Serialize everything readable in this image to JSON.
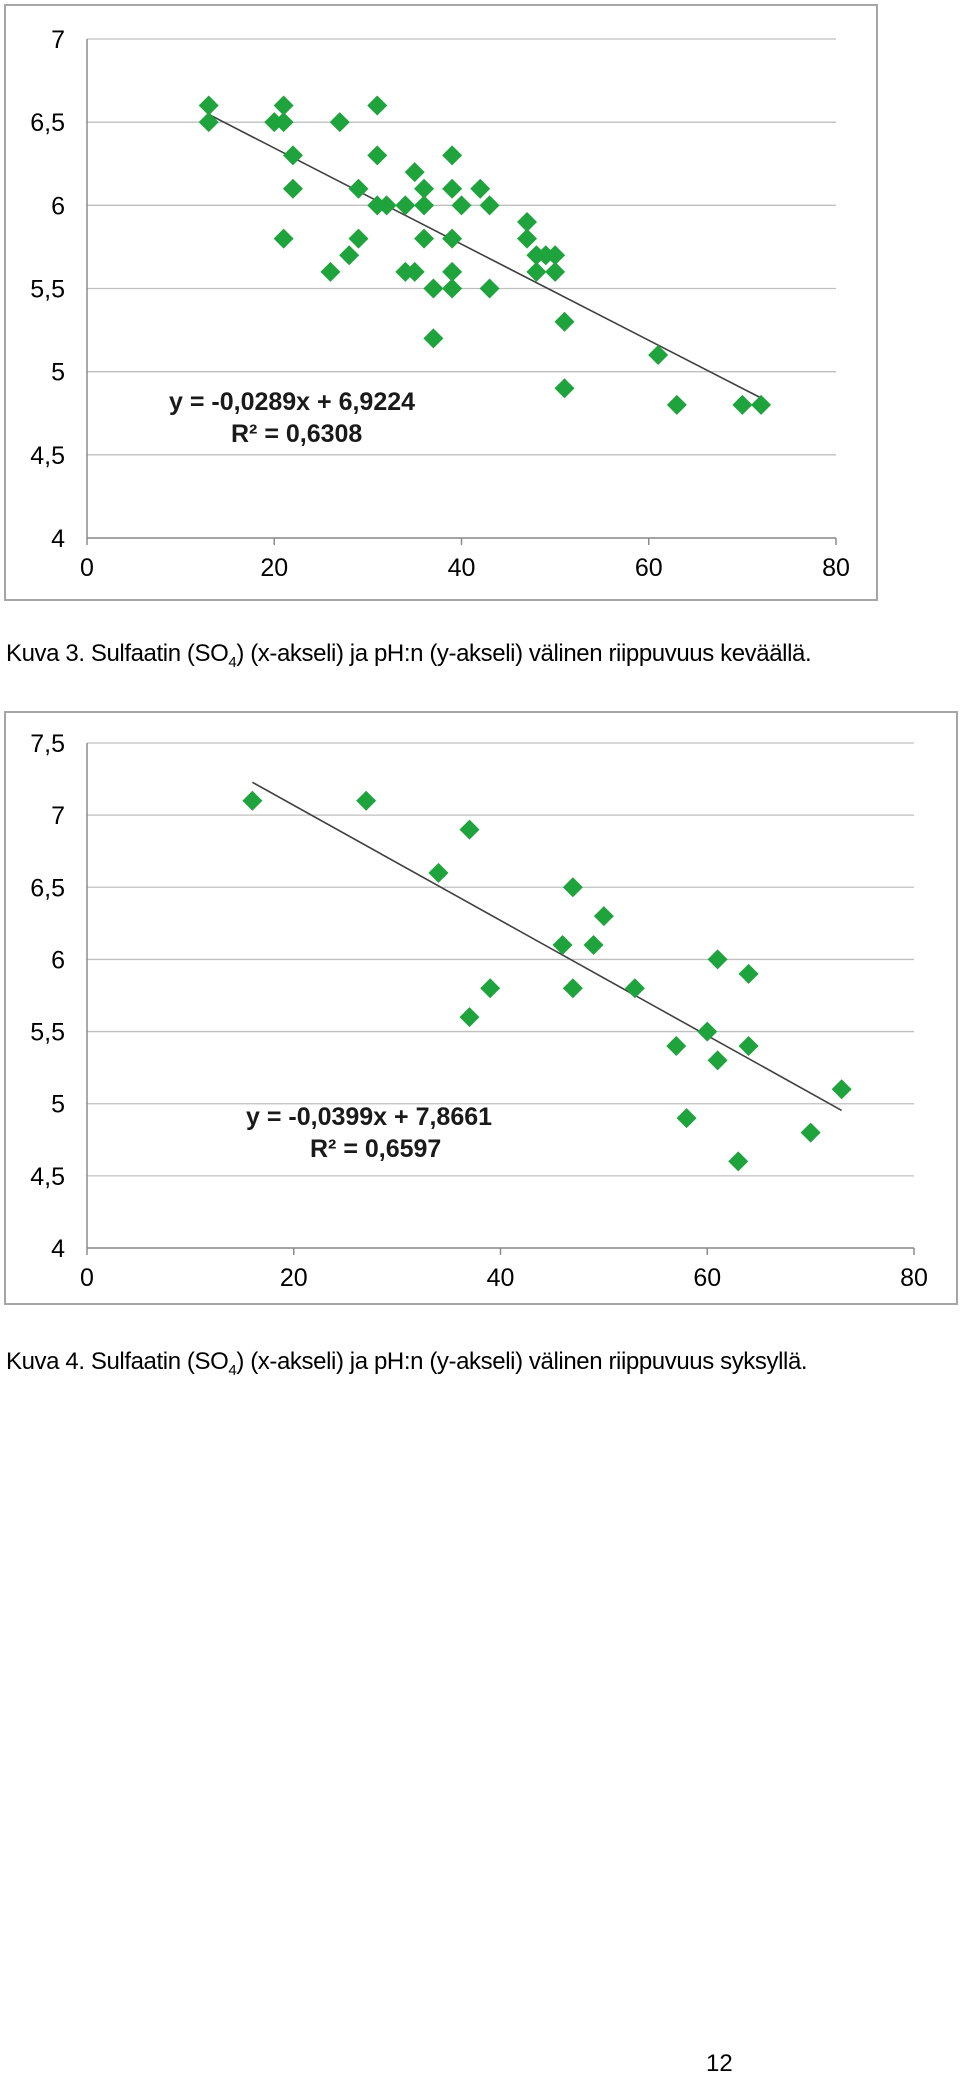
{
  "chart_data": [
    {
      "type": "scatter",
      "xlim": [
        0,
        80
      ],
      "ylim": [
        4,
        7
      ],
      "xticks": [
        "0",
        "20",
        "40",
        "60",
        "80"
      ],
      "yticks": [
        "4",
        "4,5",
        "5",
        "5,5",
        "6",
        "6,5",
        "7"
      ],
      "grid": "horizontal",
      "marker_color": "#1fa33c",
      "trendline": {
        "slope": -0.0289,
        "intercept": 6.9224,
        "x_range": [
          13,
          72
        ],
        "color": "#404040"
      },
      "equation": "y = -0,0289x + 6,9224",
      "r_squared": "R² = 0,6308",
      "points": [
        [
          13,
          6.6
        ],
        [
          13,
          6.5
        ],
        [
          20,
          6.5
        ],
        [
          21,
          6.6
        ],
        [
          21,
          6.5
        ],
        [
          22,
          6.3
        ],
        [
          22,
          6.1
        ],
        [
          21,
          5.8
        ],
        [
          26,
          5.6
        ],
        [
          27,
          6.5
        ],
        [
          28,
          5.7
        ],
        [
          29,
          5.8
        ],
        [
          29,
          6.1
        ],
        [
          31,
          6.6
        ],
        [
          31,
          6.3
        ],
        [
          31,
          6.0
        ],
        [
          32,
          6.0
        ],
        [
          34,
          6.0
        ],
        [
          34,
          5.6
        ],
        [
          35,
          5.6
        ],
        [
          35,
          6.2
        ],
        [
          36,
          6.1
        ],
        [
          36,
          6.0
        ],
        [
          36,
          5.8
        ],
        [
          37,
          5.5
        ],
        [
          37,
          5.2
        ],
        [
          39,
          6.3
        ],
        [
          39,
          6.1
        ],
        [
          39,
          5.8
        ],
        [
          39,
          5.6
        ],
        [
          39,
          5.5
        ],
        [
          40,
          6.0
        ],
        [
          42,
          6.1
        ],
        [
          43,
          6.0
        ],
        [
          43,
          5.5
        ],
        [
          47,
          5.9
        ],
        [
          47,
          5.8
        ],
        [
          48,
          5.7
        ],
        [
          48,
          5.6
        ],
        [
          49,
          5.7
        ],
        [
          50,
          5.7
        ],
        [
          50,
          5.6
        ],
        [
          51,
          5.3
        ],
        [
          51,
          4.9
        ],
        [
          61,
          5.1
        ],
        [
          63,
          4.8
        ],
        [
          70,
          4.8
        ],
        [
          72,
          4.8
        ]
      ]
    },
    {
      "type": "scatter",
      "xlim": [
        0,
        80
      ],
      "ylim": [
        4,
        7.5
      ],
      "xticks": [
        "0",
        "20",
        "40",
        "60",
        "80"
      ],
      "yticks": [
        "4",
        "4,5",
        "5",
        "5,5",
        "6",
        "6,5",
        "7",
        "7,5"
      ],
      "grid": "horizontal",
      "marker_color": "#1fa33c",
      "trendline": {
        "slope": -0.0399,
        "intercept": 7.8661,
        "x_range": [
          16,
          73
        ],
        "color": "#404040"
      },
      "equation": "y = -0,0399x + 7,8661",
      "r_squared": "R² = 0,6597",
      "points": [
        [
          16,
          7.1
        ],
        [
          27,
          7.1
        ],
        [
          34,
          6.6
        ],
        [
          37,
          6.9
        ],
        [
          37,
          5.6
        ],
        [
          39,
          5.8
        ],
        [
          46,
          6.1
        ],
        [
          47,
          6.5
        ],
        [
          47,
          5.8
        ],
        [
          49,
          6.1
        ],
        [
          50,
          6.3
        ],
        [
          53,
          5.8
        ],
        [
          57,
          5.4
        ],
        [
          58,
          4.9
        ],
        [
          60,
          5.5
        ],
        [
          61,
          6.0
        ],
        [
          61,
          5.3
        ],
        [
          63,
          4.6
        ],
        [
          64,
          5.9
        ],
        [
          64,
          5.4
        ],
        [
          70,
          4.8
        ],
        [
          73,
          5.1
        ]
      ]
    }
  ],
  "captions": {
    "fig3_before": "Kuva 3. Sulfaatin (SO",
    "fig3_sub": "4",
    "fig3_after": ") (x-akseli) ja pH:n (y-akseli) välinen riippuvuus keväällä.",
    "fig4_before": "Kuva 4. Sulfaatin (SO",
    "fig4_sub": "4",
    "fig4_after": ") (x-akseli) ja pH:n (y-akseli) välinen riippuvuus syksyllä."
  },
  "page_number": "12"
}
